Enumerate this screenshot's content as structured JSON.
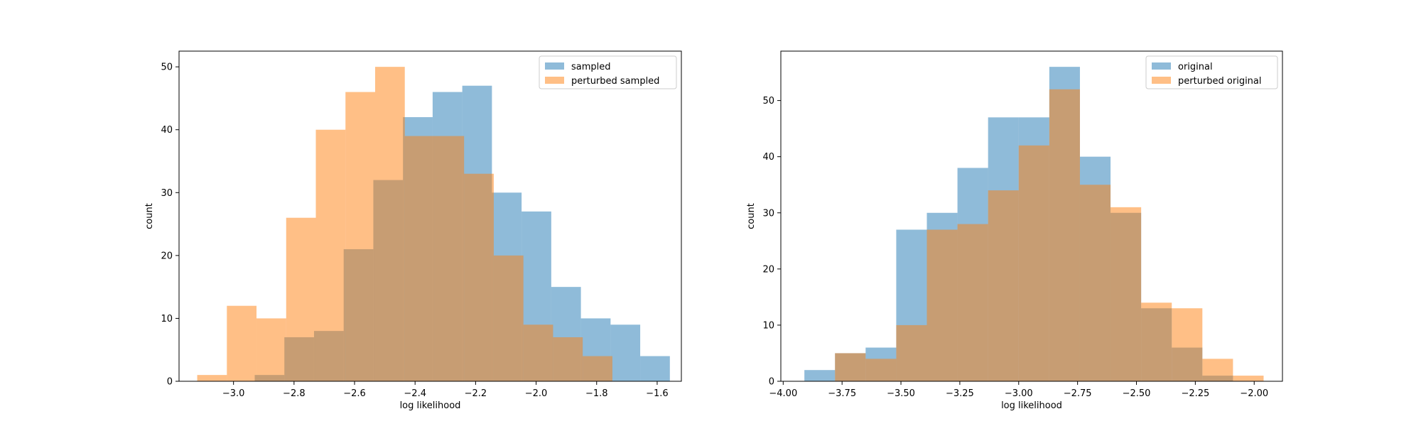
{
  "chart_data": [
    {
      "type": "bar",
      "subtype": "overlaid-histogram",
      "xlabel": "log likelihood",
      "ylabel": "count",
      "xlim": [
        -3.18,
        -1.52
      ],
      "ylim": [
        0,
        52.5
      ],
      "xticks": [
        -3.0,
        -2.8,
        -2.6,
        -2.4,
        -2.2,
        -2.0,
        -1.8,
        -1.6
      ],
      "xtick_labels": [
        "−3.0",
        "−2.8",
        "−2.6",
        "−2.4",
        "−2.2",
        "−2.0",
        "−1.8",
        "−1.6"
      ],
      "yticks": [
        0,
        10,
        20,
        30,
        40,
        50
      ],
      "ytick_labels": [
        "0",
        "10",
        "20",
        "30",
        "40",
        "50"
      ],
      "legend_position": "top-right",
      "grid": false,
      "series": [
        {
          "name": "sampled",
          "color": "#1f77b4",
          "alpha": 0.5,
          "bin_edges": [
            -2.93,
            -2.832,
            -2.734,
            -2.636,
            -2.538,
            -2.44,
            -2.342,
            -2.244,
            -2.146,
            -2.048,
            -1.95,
            -1.852,
            -1.754,
            -1.656,
            -1.558
          ],
          "counts": [
            1,
            7,
            8,
            21,
            32,
            42,
            46,
            47,
            30,
            27,
            15,
            10,
            9,
            4,
            1
          ]
        },
        {
          "name": "perturbed sampled",
          "color": "#ff7f0e",
          "alpha": 0.5,
          "bin_edges": [
            -3.12,
            -3.022,
            -2.924,
            -2.826,
            -2.728,
            -2.63,
            -2.532,
            -2.434,
            -2.336,
            -2.238,
            -2.14,
            -2.042,
            -1.944,
            -1.846,
            -1.748
          ],
          "counts": [
            1,
            12,
            10,
            26,
            40,
            46,
            50,
            39,
            39,
            33,
            20,
            9,
            7,
            4,
            3
          ]
        }
      ]
    },
    {
      "type": "bar",
      "subtype": "overlaid-histogram",
      "xlabel": "log likelihood",
      "ylabel": "count",
      "xlim": [
        -4.01,
        -1.88
      ],
      "ylim": [
        0,
        58.8
      ],
      "xticks": [
        -4.0,
        -3.75,
        -3.5,
        -3.25,
        -3.0,
        -2.75,
        -2.5,
        -2.25,
        -2.0
      ],
      "xtick_labels": [
        "−4.00",
        "−3.75",
        "−3.50",
        "−3.25",
        "−3.00",
        "−2.75",
        "−2.50",
        "−2.25",
        "−2.00"
      ],
      "yticks": [
        0,
        10,
        20,
        30,
        40,
        50
      ],
      "ytick_labels": [
        "0",
        "10",
        "20",
        "30",
        "40",
        "50"
      ],
      "legend_position": "top-right",
      "grid": false,
      "series": [
        {
          "name": "original",
          "color": "#1f77b4",
          "alpha": 0.5,
          "bin_edges": [
            -3.91,
            -3.78,
            -3.65,
            -3.52,
            -3.39,
            -3.26,
            -3.13,
            -3.0,
            -2.87,
            -2.74,
            -2.61,
            -2.48,
            -2.35,
            -2.22,
            -2.09,
            -1.96
          ],
          "counts": [
            2,
            5,
            6,
            27,
            30,
            38,
            47,
            47,
            56,
            40,
            30,
            13,
            6,
            1,
            0
          ]
        },
        {
          "name": "perturbed original",
          "color": "#ff7f0e",
          "alpha": 0.5,
          "bin_edges": [
            -3.78,
            -3.65,
            -3.52,
            -3.39,
            -3.26,
            -3.13,
            -3.0,
            -2.87,
            -2.74,
            -2.61,
            -2.48,
            -2.35,
            -2.22,
            -2.09,
            -1.96
          ],
          "counts": [
            5,
            4,
            10,
            27,
            28,
            34,
            42,
            52,
            35,
            31,
            14,
            13,
            4,
            1
          ]
        }
      ]
    }
  ]
}
